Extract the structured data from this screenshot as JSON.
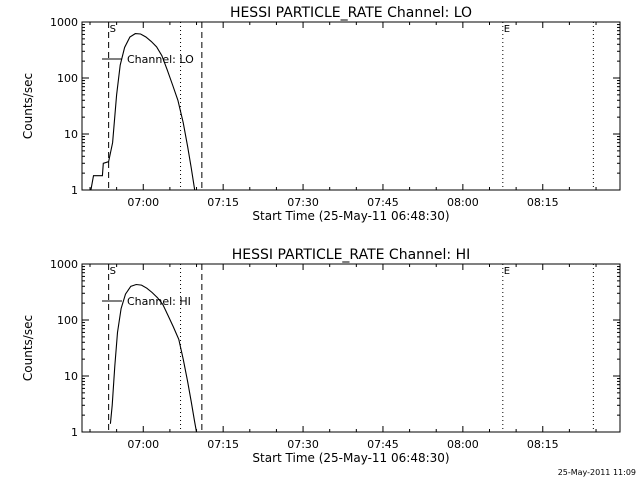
{
  "footer_timestamp": "25-May-2011 11:09",
  "chart_data": [
    {
      "type": "line",
      "title": "HESSI PARTICLE_RATE Channel: LO",
      "xlabel": "Start Time (25-May-11 06:48:30)",
      "ylabel": "Counts/sec",
      "y_scale": "log",
      "xlim": [
        "06:48:30",
        "08:29:30"
      ],
      "ylim": [
        1,
        1000
      ],
      "x_ticks": [
        "07:00",
        "07:15",
        "07:30",
        "07:45",
        "08:00",
        "08:15"
      ],
      "y_ticks": [
        "1",
        "10",
        "100",
        "1000"
      ],
      "grid": false,
      "legend": "Channel: LO",
      "markers": [
        {
          "label": "S",
          "time": "06:53:30",
          "style": "dashed"
        },
        {
          "label": "",
          "time": "07:07:00",
          "style": "dotted"
        },
        {
          "label": "",
          "time": "07:11:00",
          "style": "dashed"
        },
        {
          "label": "E",
          "time": "08:07:30",
          "style": "dotted"
        },
        {
          "label": "",
          "time": "08:24:30",
          "style": "dotted"
        }
      ],
      "series": [
        {
          "name": "Channel: LO",
          "points": [
            [
              "06:50:10",
              1
            ],
            [
              "06:50:40",
              1.8
            ],
            [
              "06:52:20",
              1.8
            ],
            [
              "06:52:30",
              3
            ],
            [
              "06:53:30",
              3.2
            ],
            [
              "06:54:15",
              7
            ],
            [
              "06:55:00",
              50
            ],
            [
              "06:55:40",
              170
            ],
            [
              "06:56:30",
              350
            ],
            [
              "06:57:30",
              540
            ],
            [
              "06:58:30",
              620
            ],
            [
              "06:59:30",
              610
            ],
            [
              "07:00:30",
              540
            ],
            [
              "07:01:30",
              450
            ],
            [
              "07:02:30",
              360
            ],
            [
              "07:03:30",
              250
            ],
            [
              "07:04:30",
              140
            ],
            [
              "07:05:30",
              75
            ],
            [
              "07:06:30",
              40
            ],
            [
              "07:07:30",
              16
            ],
            [
              "07:08:20",
              6
            ],
            [
              "07:09:00",
              2.5
            ],
            [
              "07:09:40",
              1
            ]
          ]
        }
      ]
    },
    {
      "type": "line",
      "title": "HESSI PARTICLE_RATE Channel: HI",
      "xlabel": "Start Time (25-May-11 06:48:30)",
      "ylabel": "Counts/sec",
      "y_scale": "log",
      "xlim": [
        "06:48:30",
        "08:29:30"
      ],
      "ylim": [
        1,
        1000
      ],
      "x_ticks": [
        "07:00",
        "07:15",
        "07:30",
        "07:45",
        "08:00",
        "08:15"
      ],
      "y_ticks": [
        "1",
        "10",
        "100",
        "1000"
      ],
      "grid": false,
      "legend": "Channel: HI",
      "markers": [
        {
          "label": "S",
          "time": "06:53:30",
          "style": "dashed"
        },
        {
          "label": "",
          "time": "07:07:00",
          "style": "dotted"
        },
        {
          "label": "",
          "time": "07:11:00",
          "style": "dashed"
        },
        {
          "label": "E",
          "time": "08:07:30",
          "style": "dotted"
        },
        {
          "label": "",
          "time": "08:24:30",
          "style": "dotted"
        }
      ],
      "series": [
        {
          "name": "Channel: HI",
          "points": [
            [
              "06:53:50",
              1.4
            ],
            [
              "06:54:10",
              3
            ],
            [
              "06:54:40",
              15
            ],
            [
              "06:55:10",
              60
            ],
            [
              "06:55:50",
              160
            ],
            [
              "06:56:40",
              290
            ],
            [
              "06:57:40",
              400
            ],
            [
              "06:58:40",
              430
            ],
            [
              "06:59:40",
              420
            ],
            [
              "07:00:40",
              370
            ],
            [
              "07:01:40",
              310
            ],
            [
              "07:02:40",
              250
            ],
            [
              "07:03:40",
              190
            ],
            [
              "07:04:40",
              120
            ],
            [
              "07:05:40",
              75
            ],
            [
              "07:06:40",
              45
            ],
            [
              "07:07:30",
              20
            ],
            [
              "07:08:20",
              8
            ],
            [
              "07:09:00",
              3.5
            ],
            [
              "07:09:40",
              1.5
            ],
            [
              "07:10:00",
              1
            ]
          ]
        }
      ]
    }
  ]
}
